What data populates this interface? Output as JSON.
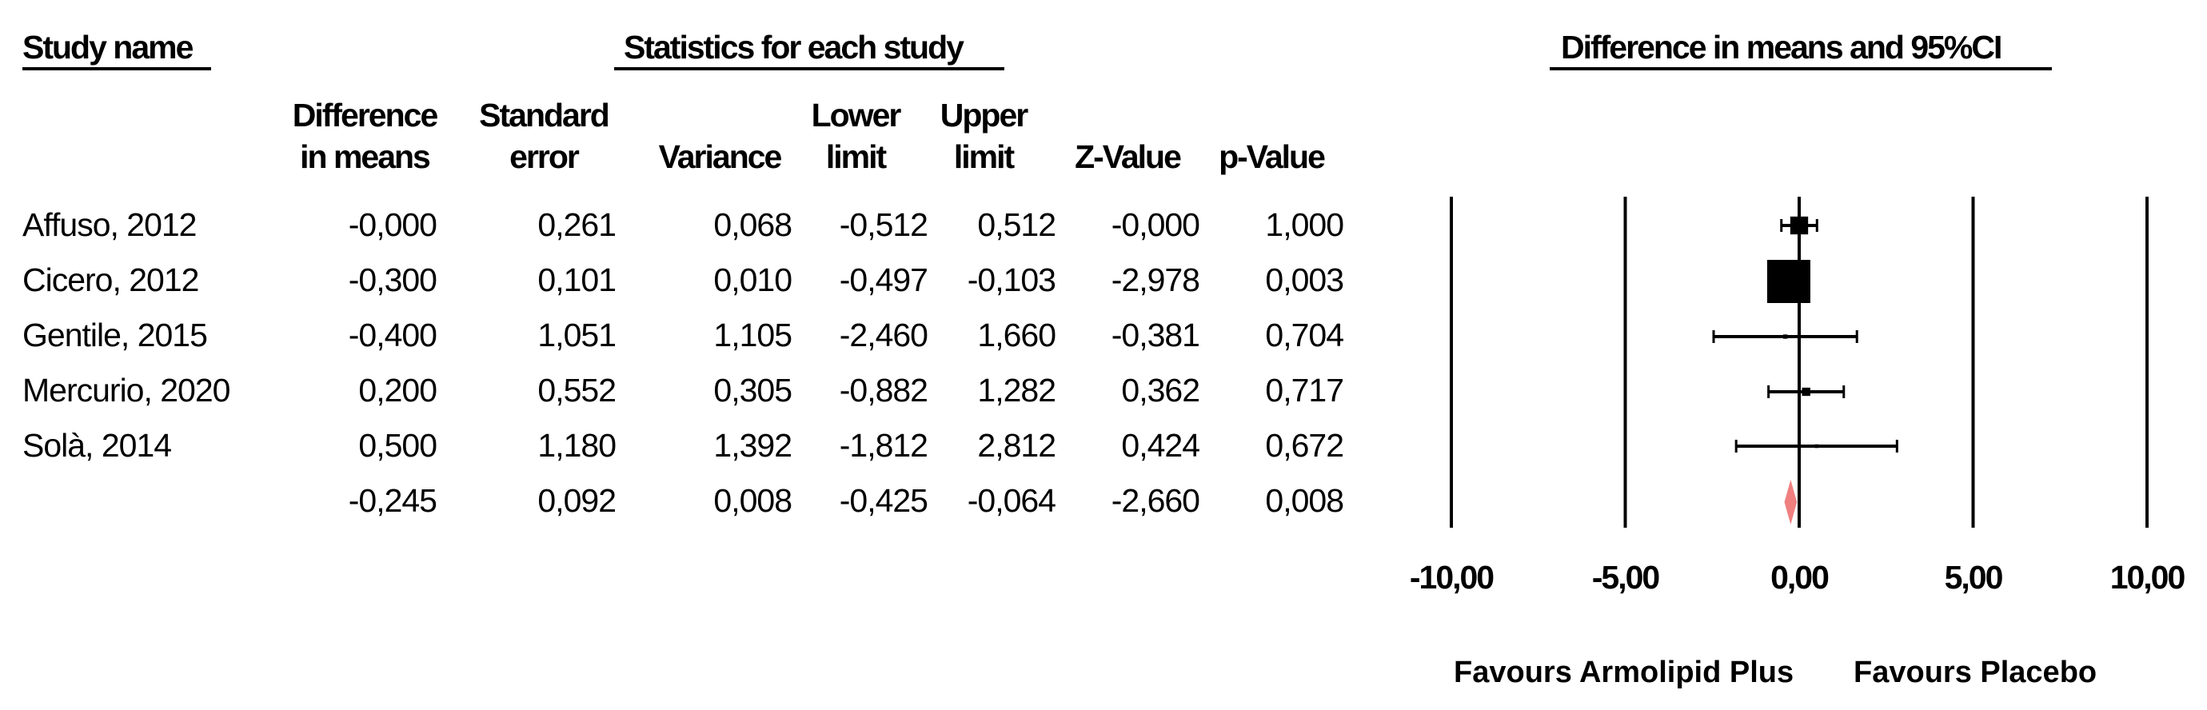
{
  "headers": {
    "study_name": "Study name",
    "statistics": "Statistics for each study",
    "plot_title": "Difference in means and 95%CI"
  },
  "columns": [
    {
      "line1": "Difference",
      "line2": "in means"
    },
    {
      "line1": "Standard",
      "line2": "error"
    },
    {
      "line1": "",
      "line2": "Variance"
    },
    {
      "line1": "Lower",
      "line2": "limit"
    },
    {
      "line1": "Upper",
      "line2": "limit"
    },
    {
      "line1": "",
      "line2": "Z-Value"
    },
    {
      "line1": "",
      "line2": "p-Value"
    }
  ],
  "rows": [
    {
      "name": "Affuso, 2012",
      "values": [
        "-0,000",
        "0,261",
        "0,068",
        "-0,512",
        "0,512",
        "-0,000",
        "1,000"
      ]
    },
    {
      "name": "Cicero, 2012",
      "values": [
        "-0,300",
        "0,101",
        "0,010",
        "-0,497",
        "-0,103",
        "-2,978",
        "0,003"
      ]
    },
    {
      "name": "Gentile, 2015",
      "values": [
        "-0,400",
        "1,051",
        "1,105",
        "-2,460",
        "1,660",
        "-0,381",
        "0,704"
      ]
    },
    {
      "name": "Mercurio, 2020",
      "values": [
        "0,200",
        "0,552",
        "0,305",
        "-0,882",
        "1,282",
        "0,362",
        "0,717"
      ]
    },
    {
      "name": "Solà, 2014",
      "values": [
        "0,500",
        "1,180",
        "1,392",
        "-1,812",
        "2,812",
        "0,424",
        "0,672"
      ]
    },
    {
      "name": "",
      "values": [
        "-0,245",
        "0,092",
        "0,008",
        "-0,425",
        "-0,064",
        "-2,660",
        "0,008"
      ]
    }
  ],
  "favours": {
    "left": "Favours Armolipid Plus",
    "right": "Favours Placebo"
  },
  "chart_data": {
    "type": "forest",
    "title": "Difference in means and 95%CI",
    "xlim": [
      -10,
      10
    ],
    "x_ticks": [
      -10,
      -5,
      0,
      5,
      10
    ],
    "x_tick_labels": [
      "-10,00",
      "-5,00",
      "0,00",
      "5,00",
      "10,00"
    ],
    "studies": [
      {
        "name": "Affuso, 2012",
        "estimate": 0.0,
        "lower": -0.512,
        "upper": 0.512,
        "weight": 0.14
      },
      {
        "name": "Cicero, 2012",
        "estimate": -0.3,
        "lower": -0.497,
        "upper": -0.103,
        "weight": 0.82
      },
      {
        "name": "Gentile, 2015",
        "estimate": -0.4,
        "lower": -2.46,
        "upper": 1.66,
        "weight": 0.008
      },
      {
        "name": "Mercurio, 2020",
        "estimate": 0.2,
        "lower": -0.882,
        "upper": 1.282,
        "weight": 0.03
      },
      {
        "name": "Solà, 2014",
        "estimate": 0.5,
        "lower": -1.812,
        "upper": 2.812,
        "weight": 0.006
      }
    ],
    "summary": {
      "estimate": -0.245,
      "lower": -0.425,
      "upper": -0.064
    },
    "summary_color": "#f08080",
    "marker_color": "#000000"
  }
}
